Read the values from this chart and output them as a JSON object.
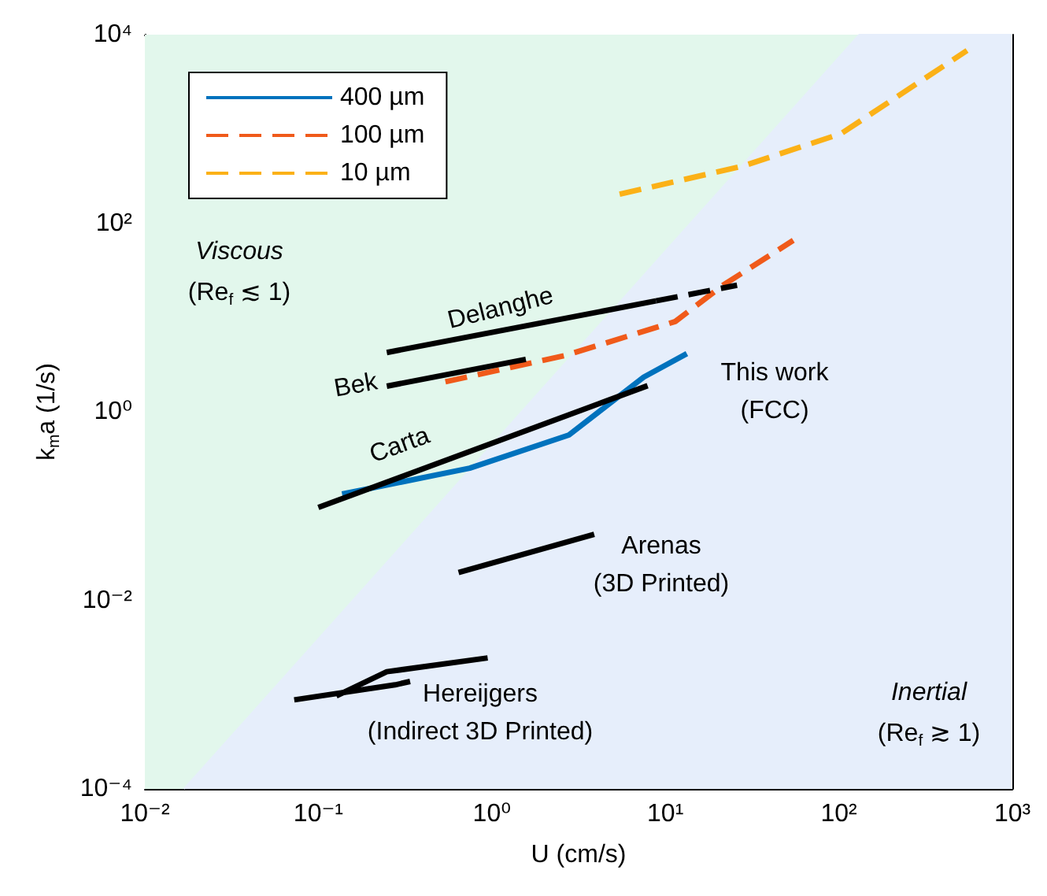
{
  "chart_data": {
    "type": "line",
    "xlabel": "U (cm/s)",
    "ylabel": "k$_{m}$a (1/s)",
    "log": "xy",
    "legend": "top left",
    "marker": "none",
    "xlim": [
      0.01,
      1000
    ],
    "ylim": [
      0.0001,
      10000
    ],
    "xticks": [
      {
        "value": 0.01,
        "label": "10⁻²"
      },
      {
        "value": 0.1,
        "label": "10⁻¹"
      },
      {
        "value": 1,
        "label": "10⁰"
      },
      {
        "value": 10,
        "label": "10¹"
      },
      {
        "value": 100,
        "label": "10²"
      },
      {
        "value": 1000,
        "label": "10³"
      }
    ],
    "yticks": [
      {
        "value": 0.0001,
        "label": "10⁻⁴"
      },
      {
        "value": 0.01,
        "label": "10⁻²"
      },
      {
        "value": 1,
        "label": "10⁰"
      },
      {
        "value": 100,
        "label": "10²"
      },
      {
        "value": 10000,
        "label": "10⁴"
      }
    ],
    "series": [
      {
        "type": "area",
        "color": "#e6eefb",
        "x": [
          0.0168,
          0.1,
          1,
          10,
          131,
          1000
        ],
        "values": [
          0.0001,
          0.0039,
          0.445,
          50.5,
          10000,
          10000
        ]
      },
      {
        "name": "400 µm",
        "color": "#0072bd",
        "line_style": "solid",
        "x": [
          0.137,
          0.745,
          2.78,
          7.5,
          13.3
        ],
        "values": [
          0.134,
          0.252,
          0.567,
          2.33,
          4.14
        ]
      },
      {
        "name": "100 µm",
        "color": "#f05a1a",
        "line_style": "dashed",
        "x": [
          0.54,
          2.68,
          11.4,
          21.5,
          54.6
        ],
        "values": [
          2.08,
          3.98,
          9.06,
          22.0,
          65.8
        ]
      },
      {
        "name": "10 µm",
        "color": "#fbb117",
        "line_style": "dashed",
        "x": [
          5.45,
          27.9,
          103,
          548
        ],
        "values": [
          203,
          403,
          891,
          6790
        ]
      },
      {
        "color": "#000000",
        "line_style": "solid",
        "x": [
          0.248,
          8.83
        ],
        "values": [
          4.25,
          15.0
        ]
      },
      {
        "color": "#000000",
        "line_style": "dashed",
        "x": [
          8.83,
          25.9
        ],
        "values": [
          15.0,
          22.0
        ]
      },
      {
        "color": "#000000",
        "line_style": "solid",
        "x": [
          0.248,
          1.57
        ],
        "values": [
          1.87,
          3.6
        ]
      },
      {
        "color": "#000000",
        "line_style": "solid",
        "x": [
          0.1,
          7.9
        ],
        "values": [
          0.0966,
          1.89
        ]
      },
      {
        "color": "#000000",
        "line_style": "solid",
        "x": [
          0.643,
          3.89
        ],
        "values": [
          0.0197,
          0.0501
        ]
      },
      {
        "color": "#000000",
        "line_style": "solid",
        "x": [
          0.0726,
          0.277,
          0.338
        ],
        "values": [
          0.00088,
          0.00127,
          0.00138
        ]
      },
      {
        "color": "#000000",
        "line_style": "solid",
        "x": [
          0.127,
          0.248,
          0.946
        ],
        "values": [
          0.00097,
          0.00175,
          0.00245
        ]
      }
    ],
    "bands": [
      {
        "axis": "x",
        "from": 0.01,
        "to": 1000,
        "color": "#e2f7ec"
      }
    ],
    "annotations": [
      "Viscous",
      "(Re$_{f}$ ≲ 1)",
      "Delanghe",
      "Bek",
      "Carta",
      "This work\n(FCC)",
      "Arenas\n(3D Printed)",
      "Hereijgers\n(Indirect 3D Printed)",
      "Inertial",
      "(Re$_{f}$ ≳ 1)"
    ]
  }
}
